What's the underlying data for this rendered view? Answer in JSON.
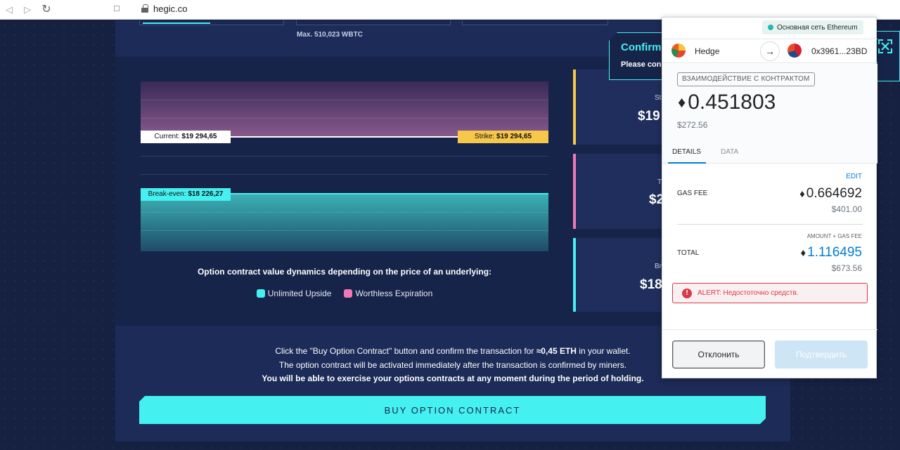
{
  "browser": {
    "url": "hegic.co",
    "back_icon": "chevron-left-icon",
    "forward_icon": "chevron-right-icon",
    "reload_icon": "reload-icon"
  },
  "page": {
    "max_label": "Max. 510,023 WBTC",
    "chart": {
      "current_label": "Current:",
      "current_value": "$19 294,65",
      "strike_label": "Strike:",
      "strike_value": "$19 294,65",
      "breakeven_label": "Break-even:",
      "breakeven_value": "$18 226,27",
      "caption": "Option contract value dynamics depending on the price of an underlying:",
      "legend": [
        {
          "label": "Unlimited Upside",
          "color": "#45f0f0"
        },
        {
          "label": "Worthless Expiration",
          "color": "#f178b6"
        }
      ]
    },
    "stats": [
      {
        "label": "St",
        "value": "$19",
        "accent": "#f7c74a"
      },
      {
        "label": "T",
        "value": "$2",
        "accent": "#f178b6"
      },
      {
        "label": "Br",
        "value": "$18",
        "accent": "#45f0f0"
      }
    ],
    "confirm": {
      "title": "Confirm",
      "subtitle": "Please con"
    },
    "instructions": {
      "line1_a": "Click the \"Buy Option Contract\" button and confirm the transaction for ",
      "line1_b": "≈0,45 ETH",
      "line1_c": " in your wallet.",
      "line2": "The option contract will be activated immediately after the transaction is confirmed by miners.",
      "line3": "You will be able to exercise your options contracts at any moment during the period of holding."
    },
    "buy_button": "BUY OPTION CONTRACT",
    "accent": "#45f0f0"
  },
  "metamask": {
    "network": "Основная сеть Ethereum",
    "from_account": "Hedge",
    "to_address": "0x3961...23BD",
    "badge": "ВЗАИМОДЕЙСТВИЕ С КОНТРАКТОМ",
    "amount": "0.451803",
    "amount_usd": "$272.56",
    "tabs": [
      "DETAILS",
      "DATA"
    ],
    "edit": "EDIT",
    "gas_fee_label": "GAS FEE",
    "gas_fee": "0.664692",
    "gas_fee_usd": "$401.00",
    "amount_gas_label": "AMOUNT + GAS FEE",
    "total_label": "TOTAL",
    "total": "1.116495",
    "total_usd": "$673.56",
    "alert": "ALERT: Недостоточно средств.",
    "reject_button": "Отклонить",
    "confirm_button": "Подтвердить",
    "eth_icon": "ethereum-icon"
  }
}
